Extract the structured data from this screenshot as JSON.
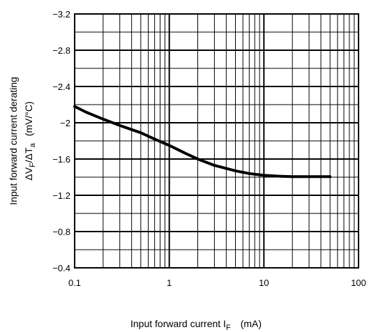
{
  "chart_data": {
    "type": "line",
    "title": "",
    "xlabel": "Input forward current   I",
    "xlabel_sub": "F",
    "xlabel_unit": "(mA)",
    "ylabel_line1": "Input forward current derating",
    "ylabel_delta1": "ΔV",
    "ylabel_sub1": "F",
    "ylabel_slash": "/ΔT",
    "ylabel_sub2": "a",
    "ylabel_unit": "(mV/°C)",
    "x_scale": "log",
    "xlim": [
      0.1,
      100
    ],
    "ylim": [
      -3.2,
      -0.4
    ],
    "y_inverted": true,
    "grid": true,
    "legend": "none",
    "line_color": "#000000",
    "x_tick_labels": [
      "0.1",
      "1",
      "10",
      "100"
    ],
    "y_tick_labels": [
      "−3.2",
      "−2.8",
      "−2.4",
      "−2",
      "−1.6",
      "−1.2",
      "−0.8",
      "−0.4"
    ],
    "x_tick_values": [
      0.1,
      1,
      10,
      100
    ],
    "y_tick_values": [
      -3.2,
      -2.8,
      -2.4,
      -2.0,
      -1.6,
      -1.2,
      -0.8,
      -0.4
    ],
    "series": [
      {
        "x": [
          0.1,
          0.13,
          0.2,
          0.3,
          0.5,
          0.7,
          1.0,
          1.5,
          2.0,
          3.0,
          5.0,
          7.0,
          10,
          15,
          20,
          30,
          50
        ],
        "y": [
          -2.18,
          -2.12,
          -2.04,
          -1.97,
          -1.89,
          -1.82,
          -1.75,
          -1.66,
          -1.6,
          -1.53,
          -1.47,
          -1.44,
          -1.42,
          -1.41,
          -1.405,
          -1.405,
          -1.405
        ]
      }
    ]
  }
}
